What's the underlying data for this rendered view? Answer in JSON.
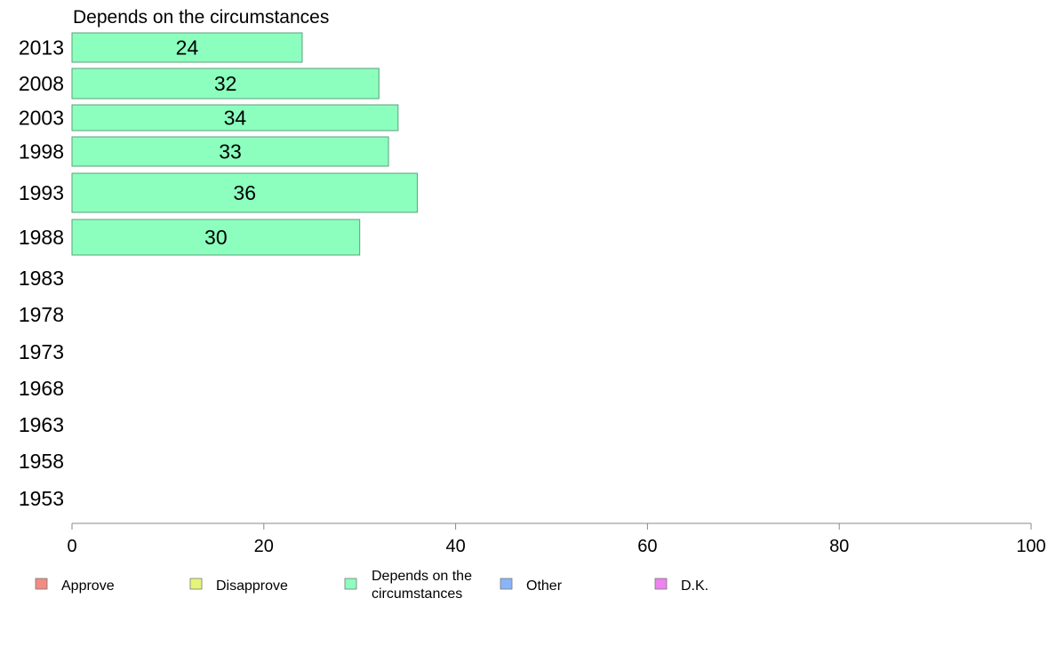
{
  "chart_data": {
    "type": "bar",
    "orientation": "horizontal",
    "title": "Depends on the circumstances",
    "categories": [
      "2013",
      "2008",
      "2003",
      "1998",
      "1993",
      "1988",
      "1983",
      "1978",
      "1973",
      "1968",
      "1963",
      "1958",
      "1953"
    ],
    "series": [
      {
        "name": "Depends on the circumstances",
        "values": [
          24,
          32,
          34,
          33,
          36,
          30,
          null,
          null,
          null,
          null,
          null,
          null,
          null
        ]
      }
    ],
    "data_labels": [
      "24",
      "32",
      "34",
      "33",
      "36",
      "30"
    ],
    "xlim": [
      0,
      100
    ],
    "xticks": [
      0,
      20,
      40,
      60,
      80,
      100
    ],
    "xlabel": "",
    "ylabel": "",
    "grid": false,
    "legend_position": "bottom",
    "legend": [
      {
        "label": "Approve",
        "color": "#f28b82"
      },
      {
        "label": "Disapprove",
        "color": "#e6f57a"
      },
      {
        "label": "Depends on the circumstances",
        "color": "#8cffbf"
      },
      {
        "label": "Other",
        "color": "#8ab4f8"
      },
      {
        "label": "D.K.",
        "color": "#ee82ee"
      }
    ],
    "bar_color": "#8cffbf",
    "bar_stroke": "#5aa27a"
  }
}
